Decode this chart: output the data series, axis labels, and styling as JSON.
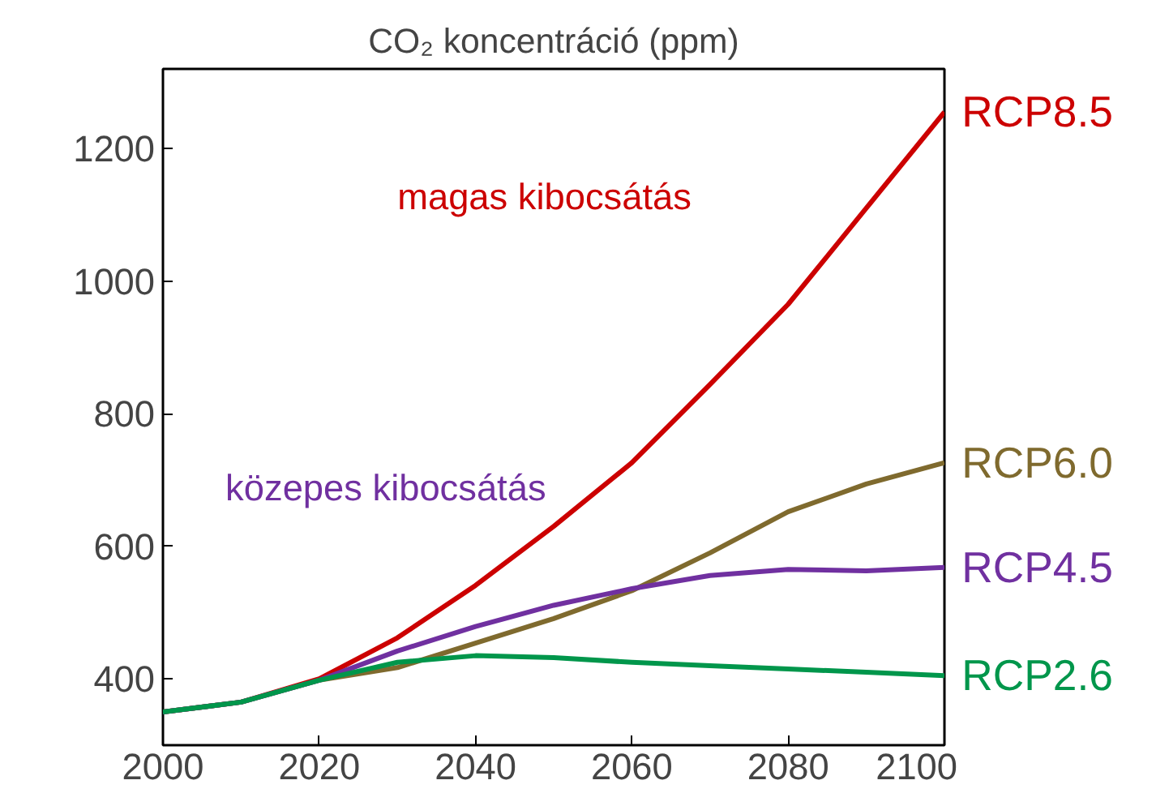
{
  "chart_data": {
    "type": "line",
    "title": "CO₂ koncentráció (ppm)",
    "x": [
      2000,
      2010,
      2020,
      2030,
      2040,
      2050,
      2060,
      2070,
      2080,
      2090,
      2100
    ],
    "xlim": [
      2000,
      2100
    ],
    "xticks": [
      2000,
      2020,
      2040,
      2060,
      2080,
      2100
    ],
    "ylim": [
      300,
      1320
    ],
    "yticks": [
      400,
      600,
      800,
      1000,
      1200
    ],
    "grid": false,
    "marker": "none",
    "line_style": "solid",
    "annotations": [
      "magas kibocsátás",
      "közepes kibocsátás"
    ],
    "series": [
      {
        "name": "RCP8.5",
        "color": "#cc0000",
        "values": [
          350,
          365,
          400,
          462,
          541,
          630,
          726,
          844,
          965,
          1110,
          1255
        ]
      },
      {
        "name": "RCP6.0",
        "color": "#7f6a2e",
        "values": [
          350,
          365,
          398,
          417,
          454,
          491,
          533,
          590,
          652,
          694,
          726
        ]
      },
      {
        "name": "RCP4.5",
        "color": "#7030a0",
        "values": [
          350,
          365,
          398,
          442,
          479,
          511,
          536,
          556,
          565,
          563,
          568
        ]
      },
      {
        "name": "RCP2.6",
        "color": "#00964b",
        "values": [
          350,
          365,
          398,
          425,
          435,
          432,
          425,
          420,
          415,
          410,
          405
        ]
      }
    ]
  }
}
